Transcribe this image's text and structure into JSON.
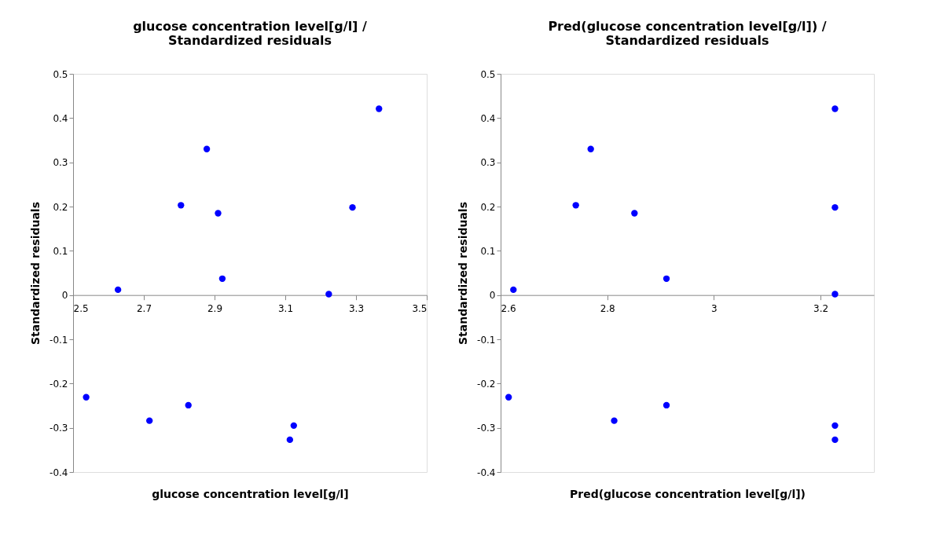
{
  "chart_data": [
    {
      "type": "scatter",
      "title": "glucose concentration level[g/l] /\nStandardized residuals",
      "xlabel": "glucose concentration level[g/l]",
      "ylabel": "Standardized residuals",
      "x": [
        3.365,
        2.878,
        2.805,
        2.91,
        3.29,
        2.627,
        2.922,
        3.223,
        2.537,
        2.716,
        2.826,
        3.124,
        3.113
      ],
      "values": [
        0.421,
        0.33,
        0.203,
        0.185,
        0.198,
        0.012,
        0.037,
        0.002,
        -0.231,
        -0.284,
        -0.249,
        -0.295,
        -0.327
      ],
      "color": "#0000ff",
      "marker": "circle",
      "grid": false,
      "xlim": [
        2.5,
        3.5
      ],
      "xticks": [
        2.5,
        2.7,
        2.9,
        3.1,
        3.3,
        3.5
      ],
      "ylim": [
        -0.4,
        0.5
      ],
      "yticks": [
        -0.4,
        -0.3,
        -0.2,
        -0.1,
        0,
        0.1,
        0.2,
        0.3,
        0.4,
        0.5
      ]
    },
    {
      "type": "scatter",
      "title": "Pred(glucose concentration level[g/l]) /\nStandardized residuals",
      "xlabel": "Pred(glucose concentration level[g/l])",
      "ylabel": "Standardized residuals",
      "x": [
        3.227,
        2.769,
        2.741,
        2.851,
        3.227,
        2.624,
        2.911,
        3.227,
        2.615,
        2.813,
        2.911,
        3.227,
        3.227
      ],
      "values": [
        0.421,
        0.33,
        0.203,
        0.185,
        0.198,
        0.012,
        0.037,
        0.002,
        -0.231,
        -0.284,
        -0.249,
        -0.295,
        -0.327
      ],
      "color": "#0000ff",
      "marker": "circle",
      "grid": false,
      "xlim": [
        2.6,
        3.3
      ],
      "xticks": [
        2.6,
        2.8,
        3,
        3.2
      ],
      "ylim": [
        -0.4,
        0.5
      ],
      "yticks": [
        -0.4,
        -0.3,
        -0.2,
        -0.1,
        0,
        0.1,
        0.2,
        0.3,
        0.4,
        0.5
      ]
    }
  ]
}
